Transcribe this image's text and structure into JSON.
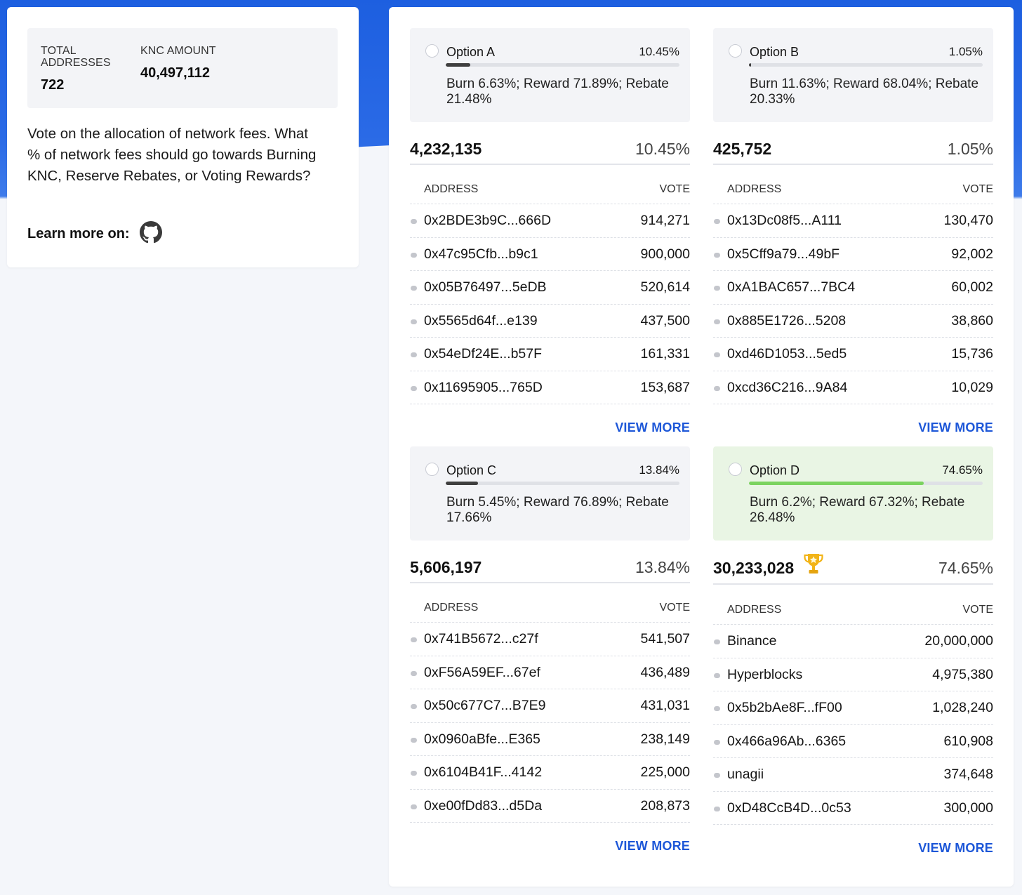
{
  "summary": {
    "total_addresses_label": "TOTAL ADDRESSES",
    "total_addresses_value": "722",
    "knc_amount_label": "KNC AMOUNT",
    "knc_amount_value": "40,497,112",
    "intro": "Vote on the allocation of network fees. What % of network fees should go towards Burning KNC, Reserve Rebates, or Voting Rewards?",
    "learn_more": "Learn more on:",
    "learn_more_icon": "github-icon"
  },
  "table_headers": {
    "address": "ADDRESS",
    "vote": "VOTE"
  },
  "view_more_label": "VIEW MORE",
  "options": [
    {
      "name": "Option A",
      "percent": "10.45%",
      "fraction": 0.1045,
      "description": "Burn 6.63%; Reward 71.89%; Rebate 21.48%",
      "total": "4,232,135",
      "winner": false,
      "rows": [
        {
          "address": "0x2BDE3b9C...666D",
          "vote": "914,271"
        },
        {
          "address": "0x47c95Cfb...b9c1",
          "vote": "900,000"
        },
        {
          "address": "0x05B76497...5eDB",
          "vote": "520,614"
        },
        {
          "address": "0x5565d64f...e139",
          "vote": "437,500"
        },
        {
          "address": "0x54eDf24E...b57F",
          "vote": "161,331"
        },
        {
          "address": "0x11695905...765D",
          "vote": "153,687"
        }
      ]
    },
    {
      "name": "Option B",
      "percent": "1.05%",
      "fraction": 0.0105,
      "description": "Burn 11.63%; Reward 68.04%; Rebate 20.33%",
      "total": "425,752",
      "winner": false,
      "rows": [
        {
          "address": "0x13Dc08f5...A111",
          "vote": "130,470"
        },
        {
          "address": "0x5Cff9a79...49bF",
          "vote": "92,002"
        },
        {
          "address": "0xA1BAC657...7BC4",
          "vote": "60,002"
        },
        {
          "address": "0x885E1726...5208",
          "vote": "38,860"
        },
        {
          "address": "0xd46D1053...5ed5",
          "vote": "15,736"
        },
        {
          "address": "0xcd36C216...9A84",
          "vote": "10,029"
        }
      ]
    },
    {
      "name": "Option C",
      "percent": "13.84%",
      "fraction": 0.1384,
      "description": "Burn 5.45%; Reward 76.89%; Rebate 17.66%",
      "total": "5,606,197",
      "winner": false,
      "rows": [
        {
          "address": "0x741B5672...c27f",
          "vote": "541,507"
        },
        {
          "address": "0xF56A59EF...67ef",
          "vote": "436,489"
        },
        {
          "address": "0x50c677C7...B7E9",
          "vote": "431,031"
        },
        {
          "address": "0x0960aBfe...E365",
          "vote": "238,149"
        },
        {
          "address": "0x6104B41F...4142",
          "vote": "225,000"
        },
        {
          "address": "0xe00fDd83...d5Da",
          "vote": "208,873"
        }
      ]
    },
    {
      "name": "Option D",
      "percent": "74.65%",
      "fraction": 0.7465,
      "description": "Burn 6.2%; Reward 67.32%; Rebate 26.48%",
      "total": "30,233,028",
      "winner": true,
      "winner_icon": "trophy-icon",
      "rows": [
        {
          "address": "Binance",
          "vote": "20,000,000"
        },
        {
          "address": "Hyperblocks",
          "vote": "4,975,380"
        },
        {
          "address": "0x5b2bAe8F...fF00",
          "vote": "1,028,240"
        },
        {
          "address": "0x466a96Ab...6365",
          "vote": "610,908"
        },
        {
          "address": "unagii",
          "vote": "374,648"
        },
        {
          "address": "0xD48CcB4D...0c53",
          "vote": "300,000"
        }
      ]
    }
  ],
  "colors": {
    "brand_blue": "#1d5fe0",
    "link_blue": "#1d57d8",
    "winner_bg": "#e9f5e4",
    "winner_bar": "#7bd35f",
    "bar_dark": "#3f3f3f",
    "trophy": "#f2b418"
  }
}
